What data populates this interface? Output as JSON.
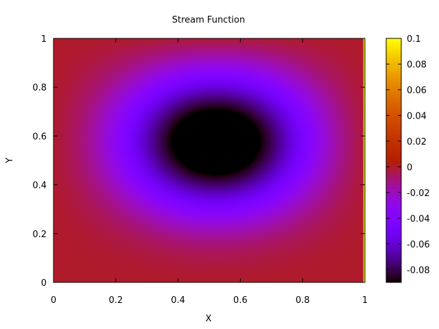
{
  "chart_data": {
    "type": "heatmap",
    "title": "Stream Function",
    "xlabel": "X",
    "ylabel": "Y",
    "xlim": [
      0,
      1
    ],
    "ylim": [
      0,
      1
    ],
    "x_ticks": [
      "0",
      "0.2",
      "0.4",
      "0.6",
      "0.8",
      "1"
    ],
    "y_ticks": [
      "0",
      "0.2",
      "0.4",
      "0.6",
      "0.8",
      "1"
    ],
    "colorbar": {
      "range": [
        -0.09,
        0.1
      ],
      "ticks": [
        "0.1",
        "0.08",
        "0.06",
        "0.04",
        "0.02",
        "0",
        "-0.02",
        "-0.04",
        "-0.06",
        "-0.08"
      ],
      "colormap": "gnuplot-pm3d (black-blue-violet-red-orange-yellow)"
    },
    "field": {
      "description_values": {
        "vortex_center": [
          0.53,
          0.6
        ],
        "min_value": -0.09,
        "boundary_value": 0.0,
        "right_edge_value": 0.1
      }
    },
    "grid": false,
    "legend": "colorbar-right"
  },
  "colors": {
    "background": "#ffffff",
    "axis": "#000000"
  }
}
